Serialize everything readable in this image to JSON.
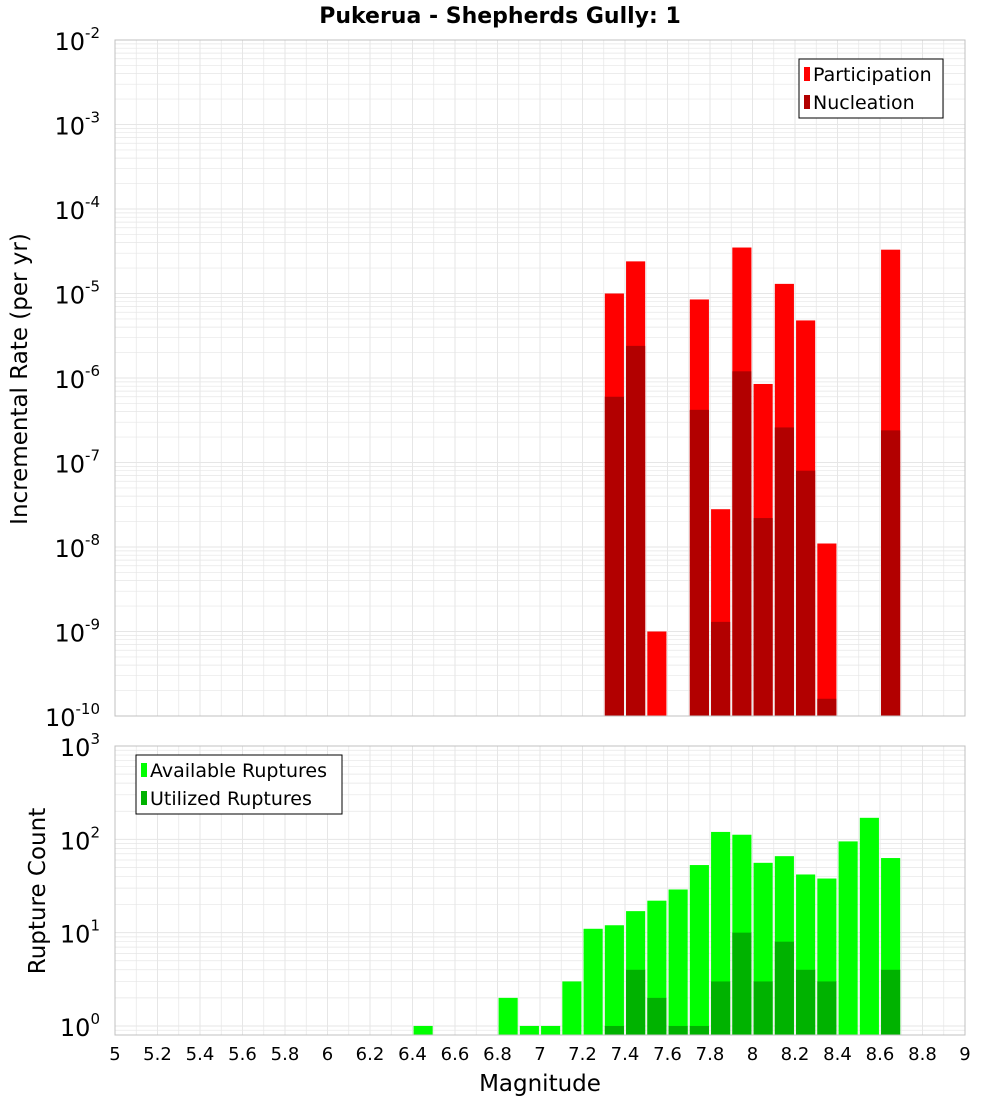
{
  "title": "Pukerua - Shepherds Gully: 1",
  "xlabel": "Magnitude",
  "colors": {
    "participation": "#ff0000",
    "nucleation": "#b20000",
    "available": "#00ff00",
    "utilized": "#00b200",
    "grid": "#e6e6e6",
    "frame": "#c0c0c0"
  },
  "chart_data": [
    {
      "type": "bar",
      "title": "Pukerua - Shepherds Gully: 1",
      "xlabel": "Magnitude",
      "ylabel": "Incremental Rate (per yr)",
      "yscale": "log",
      "xlim": [
        5,
        9
      ],
      "ylim": [
        1e-10,
        0.01
      ],
      "x_ticks": [
        "5",
        "5.2",
        "5.4",
        "5.6",
        "5.8",
        "6",
        "6.2",
        "6.4",
        "6.6",
        "6.8",
        "7",
        "7.2",
        "7.4",
        "7.6",
        "7.8",
        "8",
        "8.2",
        "8.4",
        "8.6",
        "8.8",
        "9"
      ],
      "legend_position": "top-right",
      "grid": true,
      "bar_width": 0.09,
      "series": [
        {
          "name": "Participation",
          "color": "#ff0000",
          "points": [
            {
              "x": 7.35,
              "y": 1e-05
            },
            {
              "x": 7.45,
              "y": 2.4e-05
            },
            {
              "x": 7.55,
              "y": 1e-09
            },
            {
              "x": 7.75,
              "y": 8.5e-06
            },
            {
              "x": 7.85,
              "y": 2.8e-08
            },
            {
              "x": 7.95,
              "y": 3.5e-05
            },
            {
              "x": 8.05,
              "y": 8.5e-07
            },
            {
              "x": 8.15,
              "y": 1.3e-05
            },
            {
              "x": 8.25,
              "y": 4.8e-06
            },
            {
              "x": 8.35,
              "y": 1.1e-08
            },
            {
              "x": 8.65,
              "y": 3.3e-05
            }
          ]
        },
        {
          "name": "Nucleation",
          "color": "#b20000",
          "points": [
            {
              "x": 7.35,
              "y": 6e-07
            },
            {
              "x": 7.45,
              "y": 2.4e-06
            },
            {
              "x": 7.75,
              "y": 4.2e-07
            },
            {
              "x": 7.85,
              "y": 1.3e-09
            },
            {
              "x": 7.95,
              "y": 1.2e-06
            },
            {
              "x": 8.05,
              "y": 2.2e-08
            },
            {
              "x": 8.15,
              "y": 2.6e-07
            },
            {
              "x": 8.25,
              "y": 8e-08
            },
            {
              "x": 8.35,
              "y": 1.6e-10
            },
            {
              "x": 8.65,
              "y": 2.4e-07
            }
          ]
        }
      ]
    },
    {
      "type": "bar",
      "xlabel": "Magnitude",
      "ylabel": "Rupture Count",
      "yscale": "log",
      "xlim": [
        5,
        9
      ],
      "ylim": [
        0.8,
        1000
      ],
      "legend_position": "top-left",
      "grid": true,
      "bar_width": 0.09,
      "series": [
        {
          "name": "Available Ruptures",
          "color": "#00ff00",
          "points": [
            {
              "x": 6.45,
              "y": 1
            },
            {
              "x": 6.85,
              "y": 2
            },
            {
              "x": 6.95,
              "y": 1
            },
            {
              "x": 7.05,
              "y": 1
            },
            {
              "x": 7.15,
              "y": 3
            },
            {
              "x": 7.25,
              "y": 11
            },
            {
              "x": 7.35,
              "y": 12
            },
            {
              "x": 7.45,
              "y": 17
            },
            {
              "x": 7.55,
              "y": 22
            },
            {
              "x": 7.65,
              "y": 29
            },
            {
              "x": 7.75,
              "y": 53
            },
            {
              "x": 7.85,
              "y": 120
            },
            {
              "x": 7.95,
              "y": 112
            },
            {
              "x": 8.05,
              "y": 56
            },
            {
              "x": 8.15,
              "y": 66
            },
            {
              "x": 8.25,
              "y": 42
            },
            {
              "x": 8.35,
              "y": 38
            },
            {
              "x": 8.45,
              "y": 95
            },
            {
              "x": 8.55,
              "y": 170
            },
            {
              "x": 8.65,
              "y": 63
            }
          ]
        },
        {
          "name": "Utilized Ruptures",
          "color": "#00b200",
          "points": [
            {
              "x": 7.35,
              "y": 1
            },
            {
              "x": 7.45,
              "y": 4
            },
            {
              "x": 7.55,
              "y": 2
            },
            {
              "x": 7.65,
              "y": 1
            },
            {
              "x": 7.75,
              "y": 1
            },
            {
              "x": 7.85,
              "y": 3
            },
            {
              "x": 7.95,
              "y": 10
            },
            {
              "x": 8.05,
              "y": 3
            },
            {
              "x": 8.15,
              "y": 8
            },
            {
              "x": 8.25,
              "y": 4
            },
            {
              "x": 8.35,
              "y": 3
            },
            {
              "x": 8.65,
              "y": 4
            }
          ]
        }
      ]
    }
  ]
}
